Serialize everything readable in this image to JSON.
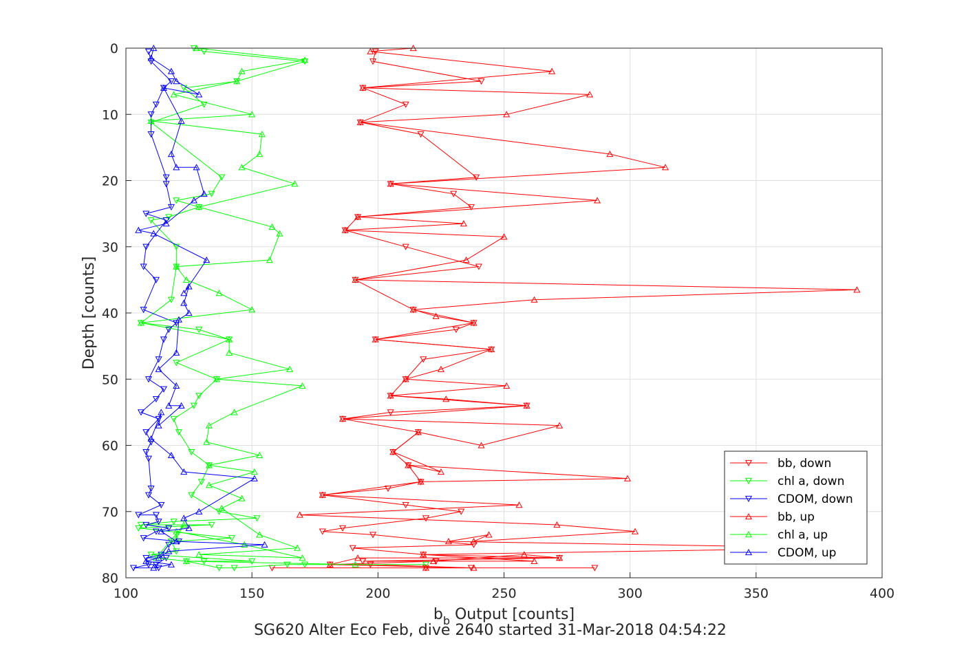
{
  "chart_data": {
    "type": "line",
    "xlabel_main": "b",
    "xlabel_sub": "b",
    "xlabel_rest": " Output [counts]",
    "ylabel": "Depth [counts]",
    "caption": "SG620 Alter Eco Feb, dive 2640 started 31-Mar-2018 04:54:22",
    "xlim": [
      100,
      400
    ],
    "ylim": [
      0,
      80
    ],
    "y_reversed": true,
    "xticks": [
      "100",
      "150",
      "200",
      "250",
      "300",
      "350",
      "400"
    ],
    "yticks": [
      "0",
      "10",
      "20",
      "30",
      "40",
      "50",
      "60",
      "70",
      "80"
    ],
    "grid": true,
    "legend_position": "lower-right",
    "colors": {
      "red": "#ff0000",
      "green": "#00ff00",
      "blue": "#0000ff"
    },
    "series": [
      {
        "name": "bb, down",
        "color": "#ff0000",
        "marker": "triangle-down",
        "points": [
          [
            199,
            0.5
          ],
          [
            198,
            2
          ],
          [
            241,
            5
          ],
          [
            194,
            6
          ],
          [
            211,
            8.5
          ],
          [
            193,
            11.2
          ],
          [
            217,
            13
          ],
          [
            239,
            19.5
          ],
          [
            205,
            20.5
          ],
          [
            230,
            22
          ],
          [
            237,
            24
          ],
          [
            192,
            25.5
          ],
          [
            187,
            27.5
          ],
          [
            211,
            30
          ],
          [
            240,
            33
          ],
          [
            191,
            35
          ],
          [
            214,
            39.5
          ],
          [
            238,
            41.5
          ],
          [
            231,
            42.5
          ],
          [
            199,
            44
          ],
          [
            245,
            45.5
          ],
          [
            218,
            47
          ],
          [
            211,
            50
          ],
          [
            205,
            52.5
          ],
          [
            259,
            54
          ],
          [
            205,
            55
          ],
          [
            186,
            56
          ],
          [
            216,
            58
          ],
          [
            206,
            61
          ],
          [
            212,
            63
          ],
          [
            217,
            65.5
          ],
          [
            204,
            66.5
          ],
          [
            178,
            67.5
          ],
          [
            211,
            69
          ],
          [
            233,
            70
          ],
          [
            219,
            71
          ],
          [
            186,
            72.5
          ],
          [
            178,
            73
          ],
          [
            198,
            73.5
          ],
          [
            238,
            75
          ],
          [
            190,
            75.5
          ],
          [
            218,
            76.5
          ],
          [
            272,
            77
          ],
          [
            194,
            77.5
          ],
          [
            223,
            77.5
          ],
          [
            181,
            78
          ],
          [
            197,
            78
          ],
          [
            237,
            78.5
          ],
          [
            286,
            78.5
          ],
          [
            158,
            78.5
          ],
          [
            219,
            78.5
          ]
        ]
      },
      {
        "name": "chl a, down",
        "color": "#00ff00",
        "marker": "triangle-down",
        "points": [
          [
            127,
            0
          ],
          [
            131,
            0.5
          ],
          [
            171,
            2
          ],
          [
            144,
            5
          ],
          [
            123,
            6
          ],
          [
            131,
            8.5
          ],
          [
            110,
            11.2
          ],
          [
            138,
            19.5
          ],
          [
            134,
            22
          ],
          [
            120,
            23
          ],
          [
            129,
            24
          ],
          [
            117,
            25.5
          ],
          [
            110,
            26
          ],
          [
            120,
            30
          ],
          [
            120,
            33
          ],
          [
            118,
            38
          ],
          [
            106,
            41.5
          ],
          [
            129,
            42.5
          ],
          [
            141,
            44
          ],
          [
            120,
            47.5
          ],
          [
            136,
            50
          ],
          [
            129,
            52.5
          ],
          [
            127,
            54
          ],
          [
            119,
            56
          ],
          [
            121,
            58
          ],
          [
            126,
            61
          ],
          [
            133,
            63
          ],
          [
            130,
            65.5
          ],
          [
            126,
            67.5
          ],
          [
            137,
            70
          ],
          [
            152,
            71
          ],
          [
            119,
            71.5
          ],
          [
            106,
            72
          ],
          [
            134,
            72
          ],
          [
            105,
            72.5
          ],
          [
            142,
            74
          ],
          [
            118,
            74.5
          ],
          [
            120,
            76
          ],
          [
            110,
            76.5
          ],
          [
            150,
            77.5
          ],
          [
            131,
            77.5
          ],
          [
            124,
            77.5
          ],
          [
            137,
            78.5
          ],
          [
            143,
            78.5
          ],
          [
            164,
            78
          ],
          [
            171,
            78
          ],
          [
            219,
            78
          ]
        ]
      },
      {
        "name": "CDOM, down",
        "color": "#0000ff",
        "marker": "triangle-down",
        "points": [
          [
            109,
            0.5
          ],
          [
            110,
            2
          ],
          [
            118,
            5
          ],
          [
            115,
            6
          ],
          [
            112,
            8.5
          ],
          [
            110,
            10
          ],
          [
            110,
            13
          ],
          [
            116,
            19.5
          ],
          [
            116,
            20.5
          ],
          [
            118,
            24
          ],
          [
            108,
            25
          ],
          [
            116,
            26
          ],
          [
            108,
            30
          ],
          [
            107,
            33
          ],
          [
            112,
            35
          ],
          [
            107,
            39.5
          ],
          [
            120,
            41.5
          ],
          [
            117,
            42.5
          ],
          [
            115,
            44
          ],
          [
            113,
            47
          ],
          [
            109,
            50
          ],
          [
            115,
            51.5
          ],
          [
            112,
            53
          ],
          [
            106,
            55
          ],
          [
            113,
            56
          ],
          [
            108,
            58
          ],
          [
            110,
            59.5
          ],
          [
            108,
            61
          ],
          [
            109,
            62
          ],
          [
            110,
            66.5
          ],
          [
            109,
            67.5
          ],
          [
            114,
            69
          ],
          [
            105,
            70.5
          ],
          [
            112,
            70.5
          ],
          [
            113,
            71.5
          ],
          [
            108,
            72
          ],
          [
            117,
            72.5
          ],
          [
            112,
            73
          ],
          [
            107,
            74
          ],
          [
            121,
            74.5
          ],
          [
            117,
            75
          ],
          [
            114,
            76.5
          ],
          [
            108,
            77
          ],
          [
            116,
            77
          ],
          [
            112,
            78
          ],
          [
            109,
            78
          ],
          [
            103,
            78.5
          ],
          [
            113,
            78.5
          ]
        ]
      },
      {
        "name": "bb, up",
        "color": "#ff0000",
        "marker": "triangle-up",
        "points": [
          [
            214,
            0
          ],
          [
            197,
            0.5
          ],
          [
            269,
            3.5
          ],
          [
            194,
            6
          ],
          [
            284,
            7
          ],
          [
            251,
            10
          ],
          [
            193,
            11.2
          ],
          [
            292,
            16
          ],
          [
            314,
            18
          ],
          [
            205,
            20.5
          ],
          [
            287,
            23
          ],
          [
            192,
            25.5
          ],
          [
            234,
            26.5
          ],
          [
            187,
            27.5
          ],
          [
            250,
            28.5
          ],
          [
            235,
            32
          ],
          [
            191,
            35
          ],
          [
            390,
            36.5
          ],
          [
            262,
            38
          ],
          [
            214,
            39.5
          ],
          [
            223,
            40.5
          ],
          [
            238,
            41.5
          ],
          [
            199,
            44
          ],
          [
            245,
            45.5
          ],
          [
            225,
            48.5
          ],
          [
            211,
            50
          ],
          [
            251,
            51
          ],
          [
            205,
            52.5
          ],
          [
            227,
            53
          ],
          [
            259,
            54
          ],
          [
            186,
            56
          ],
          [
            272,
            57
          ],
          [
            241,
            60
          ],
          [
            216,
            58
          ],
          [
            206,
            61
          ],
          [
            225,
            64
          ],
          [
            212,
            63
          ],
          [
            299,
            65
          ],
          [
            217,
            65.5
          ],
          [
            178,
            67.5
          ],
          [
            256,
            69
          ],
          [
            169,
            70.5
          ],
          [
            271,
            72
          ],
          [
            302,
            73
          ],
          [
            238,
            74.5
          ],
          [
            244,
            73.5
          ],
          [
            228,
            74.5
          ],
          [
            386,
            75.5
          ],
          [
            218,
            76.5
          ],
          [
            262,
            77.5
          ],
          [
            222,
            77.5
          ],
          [
            258,
            76.5
          ],
          [
            272,
            77
          ],
          [
            192,
            77
          ],
          [
            181,
            78
          ],
          [
            238,
            78.5
          ],
          [
            219,
            78.5
          ]
        ]
      },
      {
        "name": "chl a, up",
        "color": "#00ff00",
        "marker": "triangle-up",
        "points": [
          [
            128,
            0
          ],
          [
            171,
            1.8
          ],
          [
            146,
            3.5
          ],
          [
            144,
            5
          ],
          [
            119,
            7
          ],
          [
            150,
            10
          ],
          [
            110,
            11
          ],
          [
            154,
            13
          ],
          [
            153,
            16
          ],
          [
            146,
            18
          ],
          [
            167,
            20.5
          ],
          [
            129,
            24
          ],
          [
            158,
            27
          ],
          [
            161,
            28
          ],
          [
            157,
            32
          ],
          [
            120,
            33
          ],
          [
            124,
            35
          ],
          [
            137,
            37
          ],
          [
            150,
            39.5
          ],
          [
            106,
            41.5
          ],
          [
            141,
            44
          ],
          [
            141,
            46
          ],
          [
            165,
            48.5
          ],
          [
            136,
            50
          ],
          [
            170,
            51
          ],
          [
            143,
            55
          ],
          [
            133,
            57
          ],
          [
            132,
            59.5
          ],
          [
            153,
            61.5
          ],
          [
            133,
            63
          ],
          [
            151,
            64
          ],
          [
            133,
            66
          ],
          [
            146,
            68
          ],
          [
            138,
            69.5
          ],
          [
            153,
            73.5
          ],
          [
            168,
            75.5
          ],
          [
            129,
            76.5
          ],
          [
            170,
            77
          ],
          [
            147,
            75
          ],
          [
            120,
            73
          ],
          [
            120,
            74
          ],
          [
            123,
            72
          ],
          [
            112,
            77
          ],
          [
            124,
            77.5
          ],
          [
            191,
            78
          ]
        ]
      },
      {
        "name": "CDOM, up",
        "color": "#0000ff",
        "marker": "triangle-up",
        "points": [
          [
            111,
            0
          ],
          [
            110,
            1.5
          ],
          [
            118,
            3.5
          ],
          [
            120,
            5
          ],
          [
            129,
            7
          ],
          [
            115,
            6
          ],
          [
            122,
            11
          ],
          [
            118,
            16
          ],
          [
            120,
            18
          ],
          [
            128,
            18
          ],
          [
            131,
            22
          ],
          [
            127,
            23
          ],
          [
            116,
            26.5
          ],
          [
            105,
            27.5
          ],
          [
            111,
            28
          ],
          [
            132,
            32
          ],
          [
            123,
            37
          ],
          [
            125,
            36
          ],
          [
            123,
            38.5
          ],
          [
            125,
            40
          ],
          [
            121,
            41
          ],
          [
            120,
            46
          ],
          [
            113,
            48.5
          ],
          [
            120,
            51
          ],
          [
            117,
            54
          ],
          [
            122,
            54
          ],
          [
            113,
            57
          ],
          [
            114,
            55
          ],
          [
            110,
            59
          ],
          [
            118,
            61.5
          ],
          [
            123,
            64
          ],
          [
            151,
            65
          ],
          [
            129,
            70
          ],
          [
            123,
            71
          ],
          [
            125,
            72.5
          ],
          [
            114,
            73
          ],
          [
            120,
            74.5
          ],
          [
            155,
            75
          ],
          [
            117,
            76
          ],
          [
            113,
            77
          ],
          [
            108,
            77.5
          ],
          [
            118,
            78
          ],
          [
            111,
            78.5
          ]
        ]
      }
    ]
  }
}
